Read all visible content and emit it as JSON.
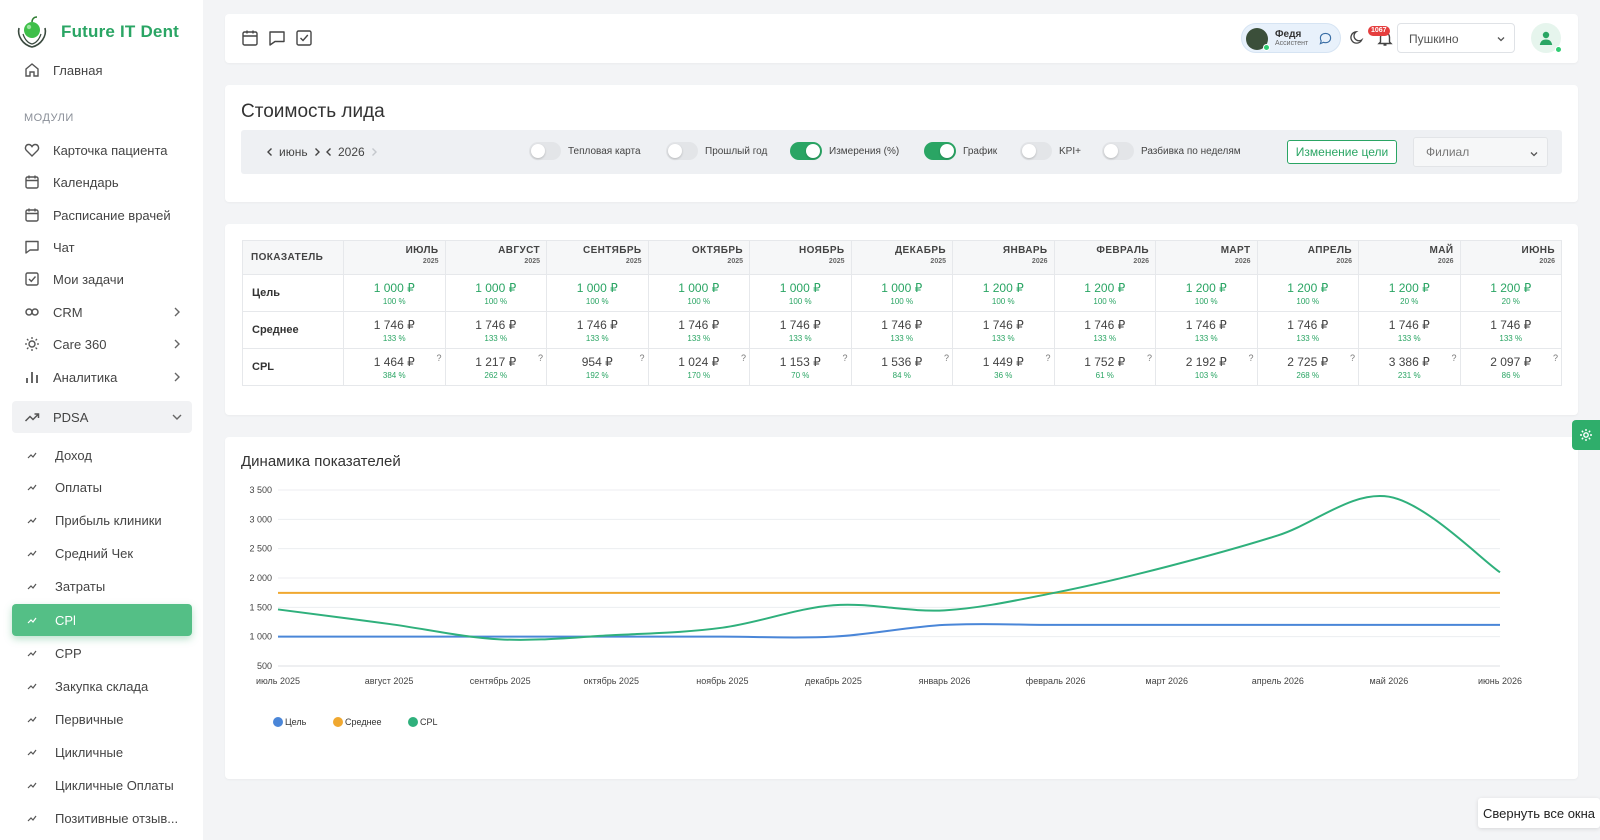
{
  "sidebar": {
    "brand": "Future IT Dent",
    "home": "Главная",
    "modules_label": "МОДУЛИ",
    "items": [
      {
        "label": "Карточка пациента",
        "icon": "heart-icon"
      },
      {
        "label": "Календарь",
        "icon": "calendar-icon"
      },
      {
        "label": "Расписание врачей",
        "icon": "calendar-icon"
      },
      {
        "label": "Чат",
        "icon": "chat-icon"
      },
      {
        "label": "Мои задачи",
        "icon": "checkbox-icon"
      },
      {
        "label": "CRM",
        "icon": "infinity-icon",
        "chevron": "right"
      },
      {
        "label": "Care 360",
        "icon": "sun-icon",
        "chevron": "right"
      },
      {
        "label": "Аналитика",
        "icon": "bar-chart-icon",
        "chevron": "right"
      },
      {
        "label": "PDSA",
        "icon": "trend-icon",
        "chevron": "down",
        "expanded": true
      }
    ],
    "sub_items": [
      {
        "label": "Доход"
      },
      {
        "label": "Оплаты"
      },
      {
        "label": "Прибыль клиники"
      },
      {
        "label": "Средний Чек"
      },
      {
        "label": "Затраты"
      },
      {
        "label": "CPl",
        "active": true
      },
      {
        "label": "CPP"
      },
      {
        "label": "Закупка склада"
      },
      {
        "label": "Первичные"
      },
      {
        "label": "Цикличные"
      },
      {
        "label": "Цикличные Оплаты"
      },
      {
        "label": "Позитивные отзыв..."
      }
    ]
  },
  "topbar": {
    "assistant_name": "Федя",
    "assistant_role": "Ассистент",
    "notifications": "1067",
    "city": "Пушкино"
  },
  "page": {
    "title": "Стоимость лида",
    "month": "июнь",
    "year": "2026",
    "toggles": [
      {
        "label": "Тепловая карта",
        "on": false
      },
      {
        "label": "Прошлый год",
        "on": false
      },
      {
        "label": "Измерения (%)",
        "on": true
      },
      {
        "label": "График",
        "on": true
      },
      {
        "label": "KPI+",
        "on": false
      },
      {
        "label": "Разбивка по неделям",
        "on": false
      }
    ],
    "goal_button": "Изменение цели",
    "branch_placeholder": "Филиал"
  },
  "table": {
    "first_header": "ПОКАЗАТЕЛЬ",
    "months": [
      {
        "m": "ИЮЛЬ",
        "y": "2025"
      },
      {
        "m": "АВГУСТ",
        "y": "2025"
      },
      {
        "m": "СЕНТЯБРЬ",
        "y": "2025"
      },
      {
        "m": "ОКТЯБРЬ",
        "y": "2025"
      },
      {
        "m": "НОЯБРЬ",
        "y": "2025"
      },
      {
        "m": "ДЕКАБРЬ",
        "y": "2025"
      },
      {
        "m": "ЯНВАРЬ",
        "y": "2026"
      },
      {
        "m": "ФЕВРАЛЬ",
        "y": "2026"
      },
      {
        "m": "МАРТ",
        "y": "2026"
      },
      {
        "m": "АПРЕЛЬ",
        "y": "2026"
      },
      {
        "m": "МАЙ",
        "y": "2026"
      },
      {
        "m": "ИЮНЬ",
        "y": "2026"
      }
    ],
    "rows": [
      {
        "name": "Цель",
        "green": true,
        "help": false,
        "cells": [
          {
            "v": "1 000 ₽",
            "p": "100 %"
          },
          {
            "v": "1 000 ₽",
            "p": "100 %"
          },
          {
            "v": "1 000 ₽",
            "p": "100 %"
          },
          {
            "v": "1 000 ₽",
            "p": "100 %"
          },
          {
            "v": "1 000 ₽",
            "p": "100 %"
          },
          {
            "v": "1 000 ₽",
            "p": "100 %"
          },
          {
            "v": "1 200 ₽",
            "p": "100 %"
          },
          {
            "v": "1 200 ₽",
            "p": "100 %"
          },
          {
            "v": "1 200 ₽",
            "p": "100 %"
          },
          {
            "v": "1 200 ₽",
            "p": "100 %"
          },
          {
            "v": "1 200 ₽",
            "p": "20 %"
          },
          {
            "v": "1 200 ₽",
            "p": "20 %"
          }
        ]
      },
      {
        "name": "Среднее",
        "green": false,
        "help": false,
        "cells": [
          {
            "v": "1 746 ₽",
            "p": "133 %"
          },
          {
            "v": "1 746 ₽",
            "p": "133 %"
          },
          {
            "v": "1 746 ₽",
            "p": "133 %"
          },
          {
            "v": "1 746 ₽",
            "p": "133 %"
          },
          {
            "v": "1 746 ₽",
            "p": "133 %"
          },
          {
            "v": "1 746 ₽",
            "p": "133 %"
          },
          {
            "v": "1 746 ₽",
            "p": "133 %"
          },
          {
            "v": "1 746 ₽",
            "p": "133 %"
          },
          {
            "v": "1 746 ₽",
            "p": "133 %"
          },
          {
            "v": "1 746 ₽",
            "p": "133 %"
          },
          {
            "v": "1 746 ₽",
            "p": "133 %"
          },
          {
            "v": "1 746 ₽",
            "p": "133 %"
          }
        ]
      },
      {
        "name": "CPL",
        "green": false,
        "help": true,
        "cells": [
          {
            "v": "1 464 ₽",
            "p": "384 %"
          },
          {
            "v": "1 217 ₽",
            "p": "262 %"
          },
          {
            "v": "954 ₽",
            "p": "192 %"
          },
          {
            "v": "1 024 ₽",
            "p": "170 %"
          },
          {
            "v": "1 153 ₽",
            "p": "70 %"
          },
          {
            "v": "1 536 ₽",
            "p": "84 %"
          },
          {
            "v": "1 449 ₽",
            "p": "36 %"
          },
          {
            "v": "1 752 ₽",
            "p": "61 %"
          },
          {
            "v": "2 192 ₽",
            "p": "103 %"
          },
          {
            "v": "2 725 ₽",
            "p": "268 %"
          },
          {
            "v": "3 386 ₽",
            "p": "231 %"
          },
          {
            "v": "2 097 ₽",
            "p": "86 %"
          }
        ]
      }
    ],
    "help_mark": "?"
  },
  "chart_data": {
    "type": "line",
    "title": "Динамика показателей",
    "categories": [
      "июль 2025",
      "август 2025",
      "сентябрь 2025",
      "октябрь 2025",
      "ноябрь 2025",
      "декабрь 2025",
      "январь 2026",
      "февраль 2026",
      "март 2026",
      "апрель 2026",
      "май 2026",
      "июнь 2026"
    ],
    "ylim": [
      500,
      3500
    ],
    "yticks": [
      500,
      1000,
      1500,
      2000,
      2500,
      3000,
      3500
    ],
    "ytick_labels": [
      "500",
      "1 000",
      "1 500",
      "2 000",
      "2 500",
      "3 000",
      "3 500"
    ],
    "grid": true,
    "legend": "bottom-left",
    "series": [
      {
        "name": "Цель",
        "color": "#4a86d8",
        "values": [
          1000,
          1000,
          1000,
          1000,
          1000,
          1000,
          1200,
          1200,
          1200,
          1200,
          1200,
          1200
        ]
      },
      {
        "name": "Среднее",
        "color": "#f0a830",
        "values": [
          1746,
          1746,
          1746,
          1746,
          1746,
          1746,
          1746,
          1746,
          1746,
          1746,
          1746,
          1746
        ]
      },
      {
        "name": "CPL",
        "color": "#2fb07c",
        "values": [
          1464,
          1217,
          954,
          1024,
          1153,
          1536,
          1449,
          1752,
          2192,
          2725,
          3386,
          2097
        ]
      }
    ]
  },
  "footer": {
    "collapse_all": "Свернуть все окна"
  }
}
